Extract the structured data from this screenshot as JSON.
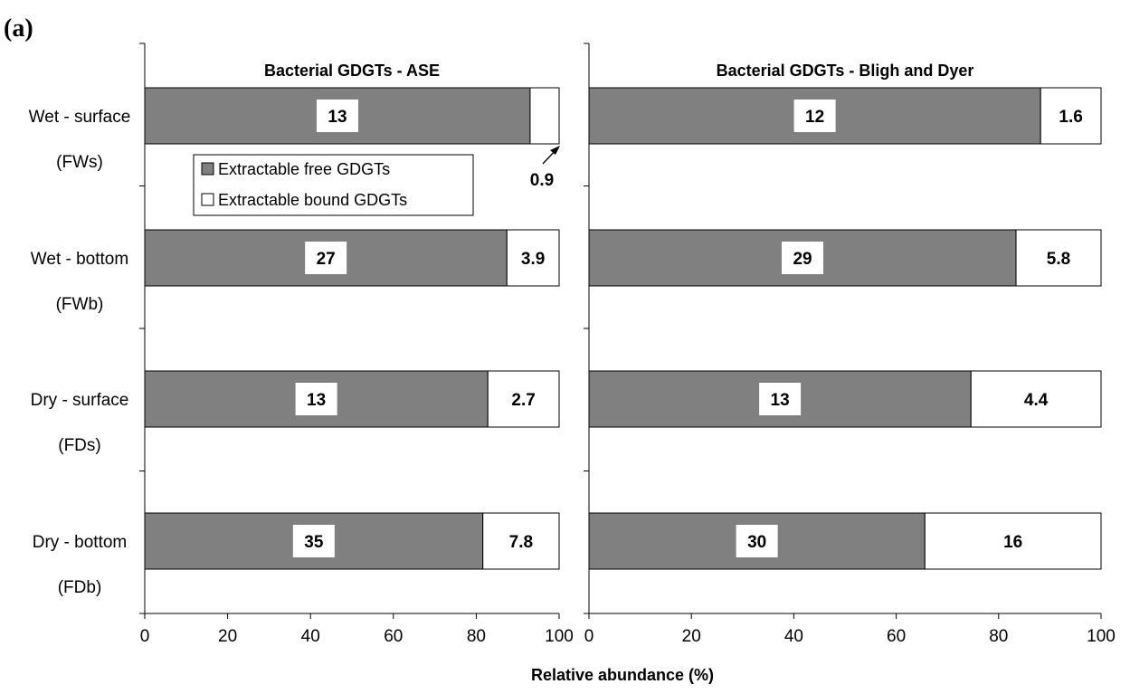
{
  "figure_label": "(a)",
  "chart_data": [
    {
      "type": "bar",
      "orientation": "horizontal",
      "stacked": true,
      "title": "Bacterial GDGTs - ASE",
      "xlabel": "Relative abundance (%)",
      "xlim": [
        0,
        100
      ],
      "xticks": [
        0,
        20,
        40,
        60,
        80,
        100
      ],
      "categories": [
        "Wet - surface",
        "Wet - bottom",
        "Dry - surface",
        "Dry - bottom"
      ],
      "category_codes": [
        "(FWs)",
        "(FWb)",
        "(FDs)",
        "(FDb)"
      ],
      "series": [
        {
          "name": "Extractable free GDGTs",
          "color": "#808080",
          "values": [
            93.0,
            87.4,
            82.8,
            81.6
          ],
          "labels": [
            "13",
            "27",
            "13",
            "35"
          ]
        },
        {
          "name": "Extractable bound GDGTs",
          "color": "#ffffff",
          "values": [
            7.0,
            12.6,
            17.2,
            18.4
          ],
          "labels": [
            "0.9",
            "3.9",
            "2.7",
            "7.8"
          ]
        }
      ]
    },
    {
      "type": "bar",
      "orientation": "horizontal",
      "stacked": true,
      "title": "Bacterial GDGTs - Bligh and Dyer",
      "xlabel": "",
      "xlim": [
        0,
        100
      ],
      "xticks": [
        0,
        20,
        40,
        60,
        80,
        100
      ],
      "categories": [
        "Wet - surface",
        "Wet - bottom",
        "Dry - surface",
        "Dry - bottom"
      ],
      "series": [
        {
          "name": "Extractable free GDGTs",
          "color": "#808080",
          "values": [
            88.2,
            83.4,
            74.6,
            65.6
          ],
          "labels": [
            "12",
            "29",
            "13",
            "30"
          ]
        },
        {
          "name": "Extractable bound GDGTs",
          "color": "#ffffff",
          "values": [
            11.8,
            16.6,
            25.4,
            34.4
          ],
          "labels": [
            "1.6",
            "5.8",
            "4.4",
            "16"
          ]
        }
      ]
    }
  ],
  "legend": {
    "placement": "inside-top-left",
    "items": [
      "Extractable free GDGTs",
      "Extractable bound GDGTs"
    ]
  }
}
